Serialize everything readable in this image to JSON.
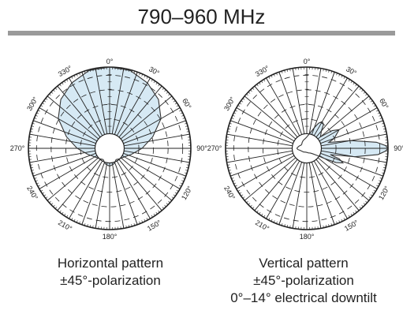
{
  "header": {
    "title": "790–960 MHz"
  },
  "chart_data": [
    {
      "type": "polar",
      "name": "horizontal",
      "angle_labels": [
        "0°",
        "30°",
        "60°",
        "90°",
        "120°",
        "150°",
        "180°",
        "210°",
        "240°",
        "270°",
        "300°",
        "330°"
      ],
      "rlim": [
        0,
        1
      ],
      "pattern": {
        "angles": [
          0,
          15,
          30,
          45,
          60,
          75,
          90,
          105,
          120,
          135,
          150,
          165,
          180,
          195,
          210,
          225,
          240,
          255,
          270,
          285,
          300,
          315,
          330,
          345
        ],
        "values": [
          1.0,
          0.99,
          0.93,
          0.85,
          0.73,
          0.55,
          0.4,
          0.28,
          0.21,
          0.18,
          0.16,
          0.2,
          0.22,
          0.2,
          0.16,
          0.18,
          0.21,
          0.28,
          0.4,
          0.55,
          0.73,
          0.85,
          0.93,
          0.99
        ]
      },
      "fill_color": "#d6e9f4",
      "caption": [
        "Horizontal pattern",
        "±45°-polarization"
      ]
    },
    {
      "type": "polar",
      "name": "vertical",
      "angle_labels": [
        "0°",
        "30°",
        "60°",
        "90°",
        "120°",
        "150°",
        "180°",
        "210°",
        "240°",
        "270°",
        "300°",
        "330°"
      ],
      "rlim": [
        0,
        1
      ],
      "pattern": {
        "angles": [
          0,
          10,
          20,
          25,
          30,
          35,
          40,
          50,
          55,
          60,
          70,
          75,
          80,
          85,
          88,
          90,
          92,
          95,
          100,
          105,
          108,
          112,
          116,
          120,
          125,
          135,
          145,
          160,
          180,
          200,
          220,
          240,
          255,
          262,
          268,
          270,
          272,
          278,
          285,
          292,
          300,
          310,
          320,
          330,
          340,
          350
        ],
        "values": [
          0.14,
          0.18,
          0.27,
          0.34,
          0.38,
          0.36,
          0.28,
          0.22,
          0.38,
          0.46,
          0.36,
          0.28,
          0.55,
          0.86,
          0.97,
          1.0,
          0.97,
          0.88,
          0.6,
          0.3,
          0.42,
          0.48,
          0.4,
          0.25,
          0.15,
          0.09,
          0.07,
          0.06,
          0.05,
          0.05,
          0.06,
          0.07,
          0.09,
          0.11,
          0.12,
          0.12,
          0.12,
          0.11,
          0.1,
          0.09,
          0.08,
          0.08,
          0.09,
          0.1,
          0.11,
          0.12
        ]
      },
      "fill_color": "#d6e9f4",
      "caption": [
        "Vertical pattern",
        "±45°-polarization",
        "0°–14° electrical downtilt"
      ]
    }
  ]
}
